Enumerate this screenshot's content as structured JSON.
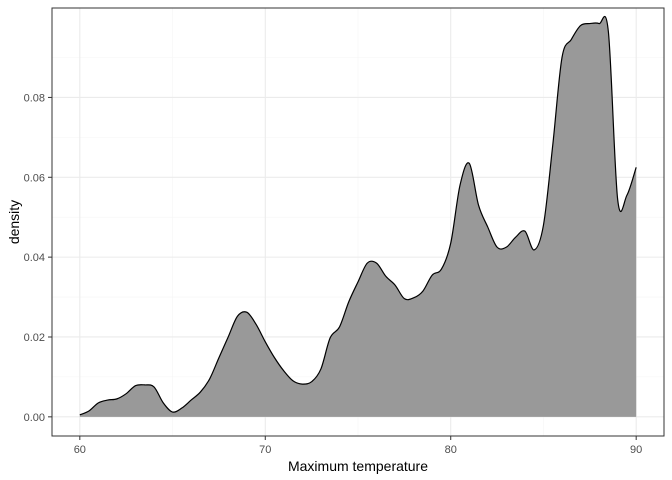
{
  "chart_data": {
    "type": "area",
    "title": "",
    "xlabel": "Maximum temperature",
    "ylabel": "density",
    "xlim": [
      58.5,
      91.5
    ],
    "ylim": [
      -0.0048,
      0.1024
    ],
    "x_ticks": [
      60,
      70,
      80,
      90
    ],
    "x_tick_labels": [
      "60",
      "70",
      "80",
      "90"
    ],
    "y_ticks": [
      0.0,
      0.02,
      0.04,
      0.06,
      0.08
    ],
    "y_tick_labels": [
      "0.00",
      "0.02",
      "0.04",
      "0.06",
      "0.08"
    ],
    "grid": true,
    "legend": "none",
    "colors": {
      "fill": "#999999",
      "line": "#000000",
      "grid_major": "#ebebeb",
      "grid_minor": "#f5f5f5",
      "panel_border": "#333333",
      "tick_text": "#4d4d4d"
    },
    "series": [
      {
        "x": [
          60.0,
          60.5,
          61.0,
          61.5,
          62.0,
          62.5,
          63.0,
          63.5,
          64.0,
          64.5,
          65.0,
          65.5,
          66.0,
          66.5,
          67.0,
          67.5,
          68.0,
          68.5,
          69.0,
          69.5,
          70.0,
          70.5,
          71.0,
          71.5,
          72.0,
          72.5,
          73.0,
          73.5,
          74.0,
          74.5,
          75.0,
          75.5,
          76.0,
          76.5,
          77.0,
          77.5,
          78.0,
          78.5,
          79.0,
          79.5,
          80.0,
          80.5,
          81.0,
          81.5,
          82.0,
          82.5,
          83.0,
          83.5,
          84.0,
          84.5,
          85.0,
          85.5,
          86.0,
          86.5,
          87.0,
          87.5,
          88.0,
          88.5,
          89.0,
          89.5,
          90.0
        ],
        "y": [
          0.0005,
          0.0015,
          0.0035,
          0.0042,
          0.0045,
          0.0058,
          0.0078,
          0.008,
          0.0075,
          0.0035,
          0.0012,
          0.0022,
          0.0042,
          0.0062,
          0.0095,
          0.0148,
          0.02,
          0.0252,
          0.0262,
          0.0232,
          0.0188,
          0.0148,
          0.0115,
          0.009,
          0.0082,
          0.0088,
          0.012,
          0.0198,
          0.0225,
          0.0288,
          0.0338,
          0.0385,
          0.0385,
          0.0352,
          0.033,
          0.0296,
          0.0298,
          0.0315,
          0.0355,
          0.037,
          0.0435,
          0.058,
          0.0635,
          0.053,
          0.0475,
          0.0425,
          0.0425,
          0.045,
          0.0465,
          0.0418,
          0.048,
          0.068,
          0.09,
          0.0945,
          0.098,
          0.0985,
          0.0985,
          0.0965,
          0.0545,
          0.0555,
          0.0625
        ]
      }
    ]
  }
}
